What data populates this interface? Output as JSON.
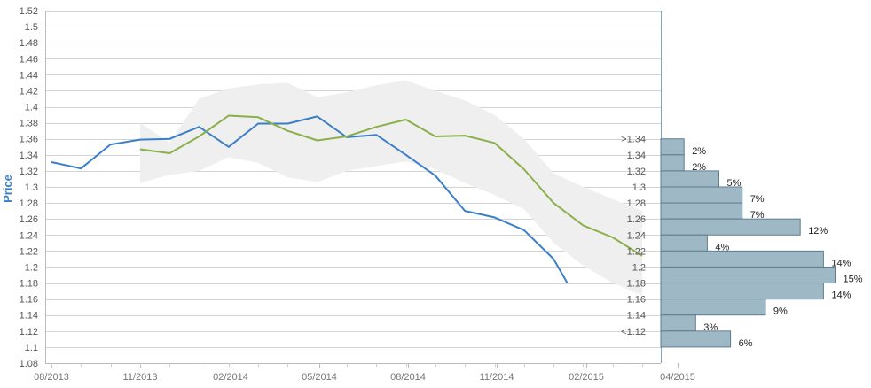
{
  "chart_data": {
    "type": "line",
    "ylabel": "Price",
    "ylim": [
      1.08,
      1.52
    ],
    "yticks": [
      "1.08",
      "1.1",
      "1.12",
      "1.14",
      "1.16",
      "1.18",
      "1.2",
      "1.22",
      "1.24",
      "1.26",
      "1.28",
      "1.3",
      "1.32",
      "1.34",
      "1.36",
      "1.38",
      "1.4",
      "1.42",
      "1.44",
      "1.46",
      "1.48",
      "1.5",
      "1.52"
    ],
    "xticks": [
      "08/2013",
      "11/2013",
      "02/2014",
      "05/2014",
      "08/2014",
      "11/2014",
      "02/2015",
      "04/2015"
    ],
    "grid": true,
    "series": [
      {
        "color": "#3a7fc8",
        "x": [
          "2013-08",
          "2013-09",
          "2013-10",
          "2013-11",
          "2013-12",
          "2014-01",
          "2014-02",
          "2014-03",
          "2014-04",
          "2014-05",
          "2014-06",
          "2014-07",
          "2014-08",
          "2014-09",
          "2014-10",
          "2014-11",
          "2014-12",
          "2015-01",
          "2015-01-15"
        ],
        "values": [
          1.331,
          1.323,
          1.353,
          1.359,
          1.36,
          1.375,
          1.35,
          1.379,
          1.379,
          1.388,
          1.362,
          1.365,
          1.34,
          1.314,
          1.27,
          1.262,
          1.246,
          1.21,
          1.18
        ]
      },
      {
        "color": "#8bb04b",
        "x": [
          "2013-11",
          "2013-12",
          "2014-01",
          "2014-02",
          "2014-03",
          "2014-04",
          "2014-05",
          "2014-06",
          "2014-07",
          "2014-08",
          "2014-09",
          "2014-10",
          "2014-11",
          "2014-12",
          "2015-01",
          "2015-02",
          "2015-03",
          "2015-04"
        ],
        "values": [
          1.347,
          1.342,
          1.363,
          1.389,
          1.387,
          1.37,
          1.358,
          1.363,
          1.375,
          1.384,
          1.363,
          1.364,
          1.355,
          1.322,
          1.28,
          1.252,
          1.237,
          1.214
        ]
      }
    ],
    "band": {
      "color": "#efefef",
      "x": [
        "2013-11",
        "2013-12",
        "2014-01",
        "2014-02",
        "2014-03",
        "2014-04",
        "2014-05",
        "2014-06",
        "2014-07",
        "2014-08",
        "2014-09",
        "2014-10",
        "2014-11",
        "2014-12",
        "2015-01",
        "2015-02",
        "2015-03",
        "2015-04"
      ],
      "upper": [
        1.38,
        1.355,
        1.41,
        1.423,
        1.428,
        1.43,
        1.412,
        1.418,
        1.427,
        1.433,
        1.42,
        1.408,
        1.39,
        1.36,
        1.317,
        1.3,
        1.285,
        1.27
      ],
      "lower": [
        1.305,
        1.315,
        1.32,
        1.337,
        1.33,
        1.312,
        1.306,
        1.32,
        1.326,
        1.332,
        1.322,
        1.305,
        1.29,
        1.272,
        1.23,
        1.202,
        1.18,
        1.165
      ]
    },
    "distribution": {
      "color": "#9fb8c6",
      "bins": [
        {
          "label": ">1.34",
          "from": 1.34,
          "to": 1.36,
          "value": 2,
          "text": "2%"
        },
        {
          "label": "1.34",
          "from": 1.32,
          "to": 1.34,
          "value": 2,
          "text": "2%"
        },
        {
          "label": "1.32",
          "from": 1.3,
          "to": 1.32,
          "value": 5,
          "text": "5%"
        },
        {
          "label": "1.3",
          "from": 1.28,
          "to": 1.3,
          "value": 7,
          "text": "7%"
        },
        {
          "label": "1.28",
          "from": 1.26,
          "to": 1.28,
          "value": 7,
          "text": "7%"
        },
        {
          "label": "1.26",
          "from": 1.24,
          "to": 1.26,
          "value": 12,
          "text": "12%"
        },
        {
          "label": "1.24",
          "from": 1.22,
          "to": 1.24,
          "value": 4,
          "text": "4%"
        },
        {
          "label": "1.22",
          "from": 1.2,
          "to": 1.22,
          "value": 14,
          "text": "14%"
        },
        {
          "label": "1.2",
          "from": 1.18,
          "to": 1.2,
          "value": 15,
          "text": "15%"
        },
        {
          "label": "1.18",
          "from": 1.16,
          "to": 1.18,
          "value": 14,
          "text": "14%"
        },
        {
          "label": "1.16",
          "from": 1.14,
          "to": 1.16,
          "value": 9,
          "text": "9%"
        },
        {
          "label": "1.14",
          "from": 1.12,
          "to": 1.14,
          "value": 3,
          "text": "3%"
        },
        {
          "label": "<1.12",
          "from": 1.1,
          "to": 1.12,
          "value": 6,
          "text": "6%"
        }
      ]
    }
  }
}
